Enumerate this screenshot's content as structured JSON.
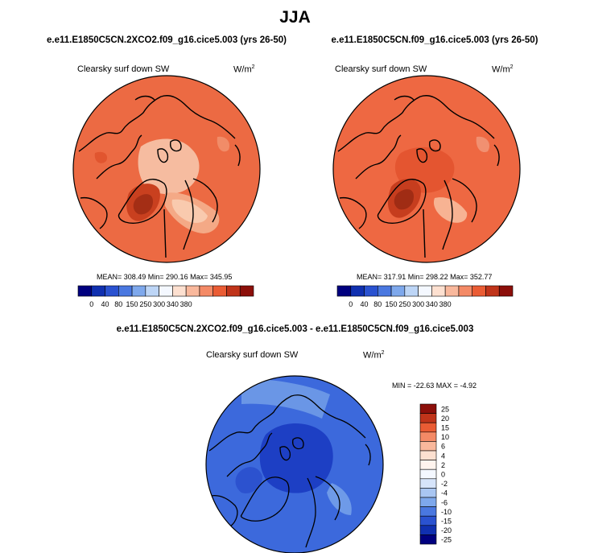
{
  "title": "JJA",
  "panels": [
    {
      "case_label": "e.e11.E1850C5CN.2XCO2.f09_g16.cice5.003 (yrs 26-50)",
      "variable": "Clearsky surf down SW",
      "units_base": "W/m",
      "units_exp": "2",
      "stats": "MEAN= 308.49  Min= 290.16  Max= 345.95",
      "colorbar_labels": [
        "0",
        "40",
        "80",
        "150",
        "250",
        "300",
        "340",
        "380"
      ]
    },
    {
      "case_label": "e.e11.E1850C5CN.f09_g16.cice5.003 (yrs 26-50)",
      "variable": "Clearsky surf down SW",
      "units_base": "W/m",
      "units_exp": "2",
      "stats": "MEAN= 317.91  Min= 298.22  Max= 352.77",
      "colorbar_labels": [
        "0",
        "40",
        "80",
        "150",
        "250",
        "300",
        "340",
        "380"
      ]
    }
  ],
  "diff_panel": {
    "case_label": "e.e11.E1850C5CN.2XCO2.f09_g16.cice5.003 - e.e11.E1850C5CN.f09_g16.cice5.003",
    "variable": "Clearsky surf down SW",
    "units_base": "W/m",
    "units_exp": "2",
    "stats": "MIN = -22.63 MAX =  -4.92",
    "colorbar_labels": [
      "25",
      "20",
      "15",
      "10",
      "6",
      "4",
      "2",
      "0",
      "-2",
      "-4",
      "-6",
      "-10",
      "-15",
      "-20",
      "-25"
    ]
  },
  "colors": {
    "abs_palette": [
      "#00007f",
      "#1030b0",
      "#2a52d0",
      "#4a78e0",
      "#7ea8ec",
      "#bdd5f6",
      "#f4f8ff",
      "#fde0d0",
      "#f9b89c",
      "#f48a66",
      "#ea5c34",
      "#c0341a",
      "#8c0f0a"
    ],
    "diff_palette": [
      "#8c0f0a",
      "#c0341a",
      "#ea5c34",
      "#f48a66",
      "#f9b89c",
      "#fde0d0",
      "#fff4ee",
      "#f4f8ff",
      "#d6e4fa",
      "#a9c6f2",
      "#7ea8ec",
      "#4a78e0",
      "#2a52d0",
      "#1030b0",
      "#00007f"
    ],
    "map_base_1": "#ec6a43",
    "map_base_2": "#ee6842",
    "map_diff_base": "#3c69dc",
    "coast": "#000000"
  }
}
